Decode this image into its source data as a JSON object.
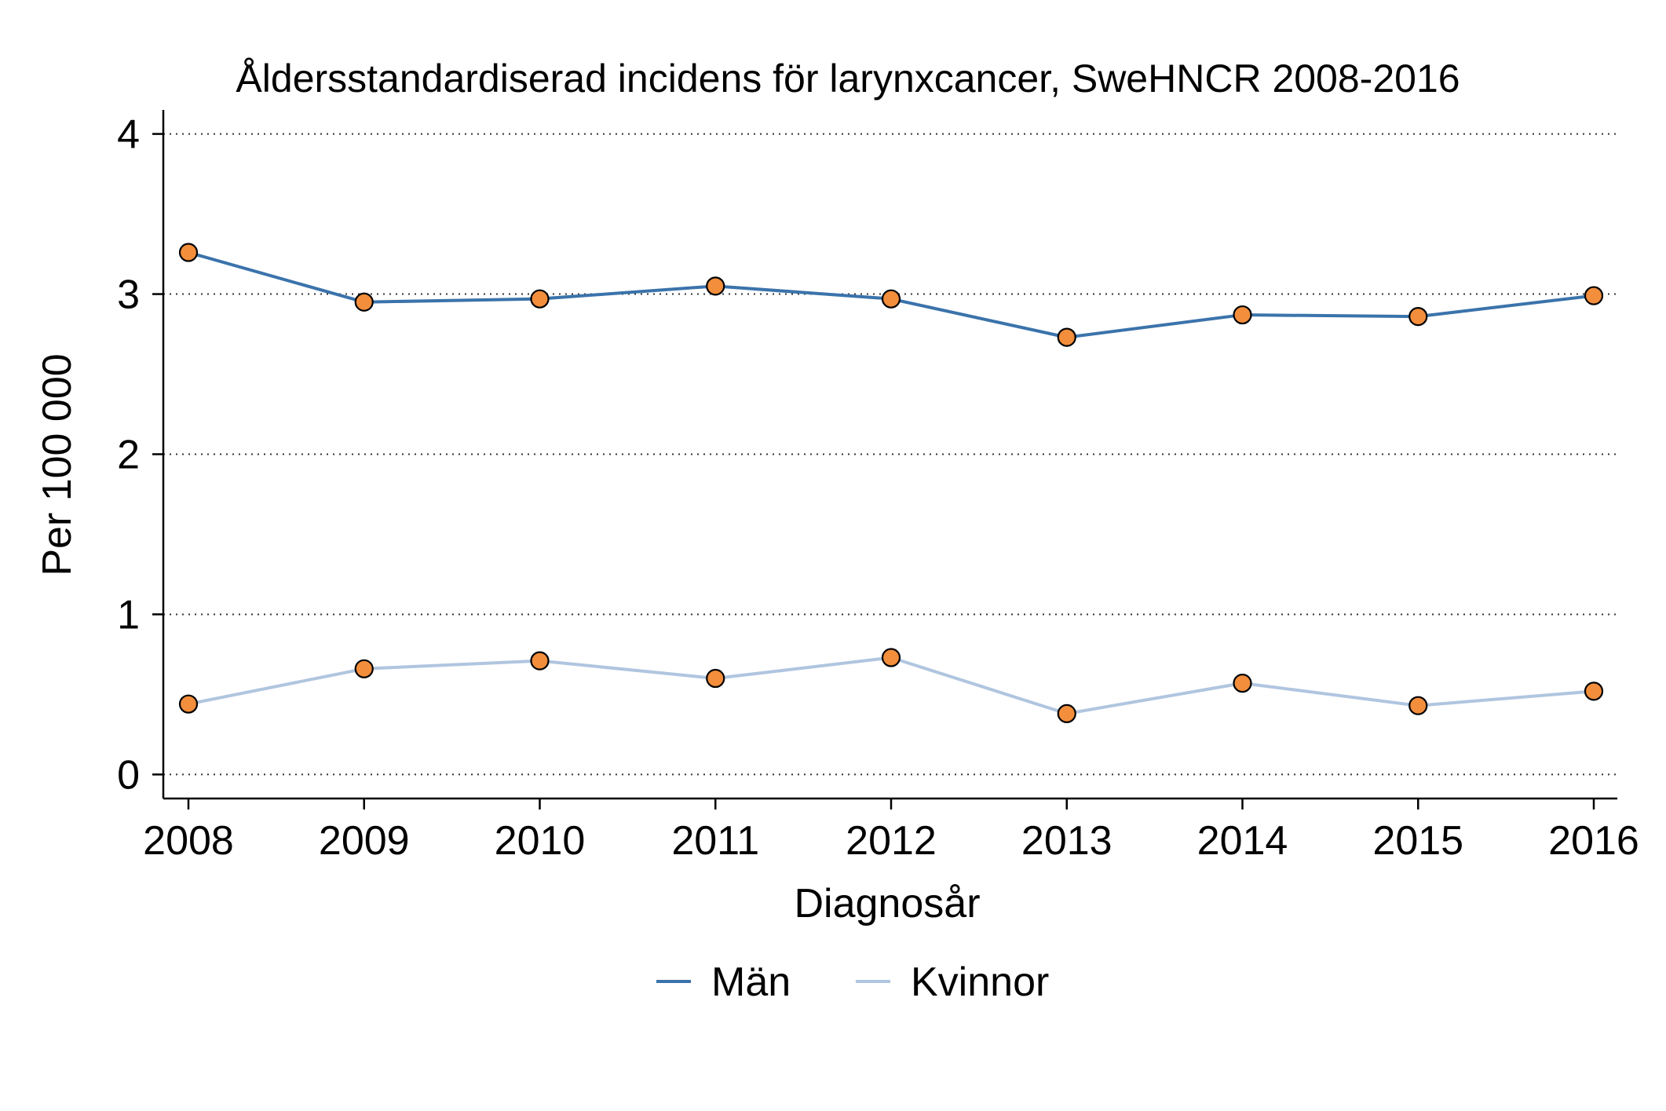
{
  "chart_data": {
    "type": "line",
    "title": "Åldersstandardiserad incidens för larynxcancer, SweHNCR 2008-2016",
    "xlabel": "Diagnosår",
    "ylabel": "Per 100 000",
    "x": [
      "2008",
      "2009",
      "2010",
      "2011",
      "2012",
      "2013",
      "2014",
      "2015",
      "2016"
    ],
    "yticks": [
      "0",
      "1",
      "2",
      "3",
      "4"
    ],
    "ylim": [
      -0.15,
      4.15
    ],
    "grid": "horizontal dotted",
    "legend_position": "bottom",
    "marker_color": "#f28e3c",
    "series": [
      {
        "name": "Män",
        "color": "#3b73ab",
        "values": [
          3.26,
          2.95,
          2.97,
          3.05,
          2.97,
          2.73,
          2.87,
          2.86,
          2.99
        ]
      },
      {
        "name": "Kvinnor",
        "color": "#b0c5df",
        "values": [
          0.44,
          0.66,
          0.71,
          0.6,
          0.73,
          0.38,
          0.57,
          0.43,
          0.52
        ]
      }
    ]
  }
}
